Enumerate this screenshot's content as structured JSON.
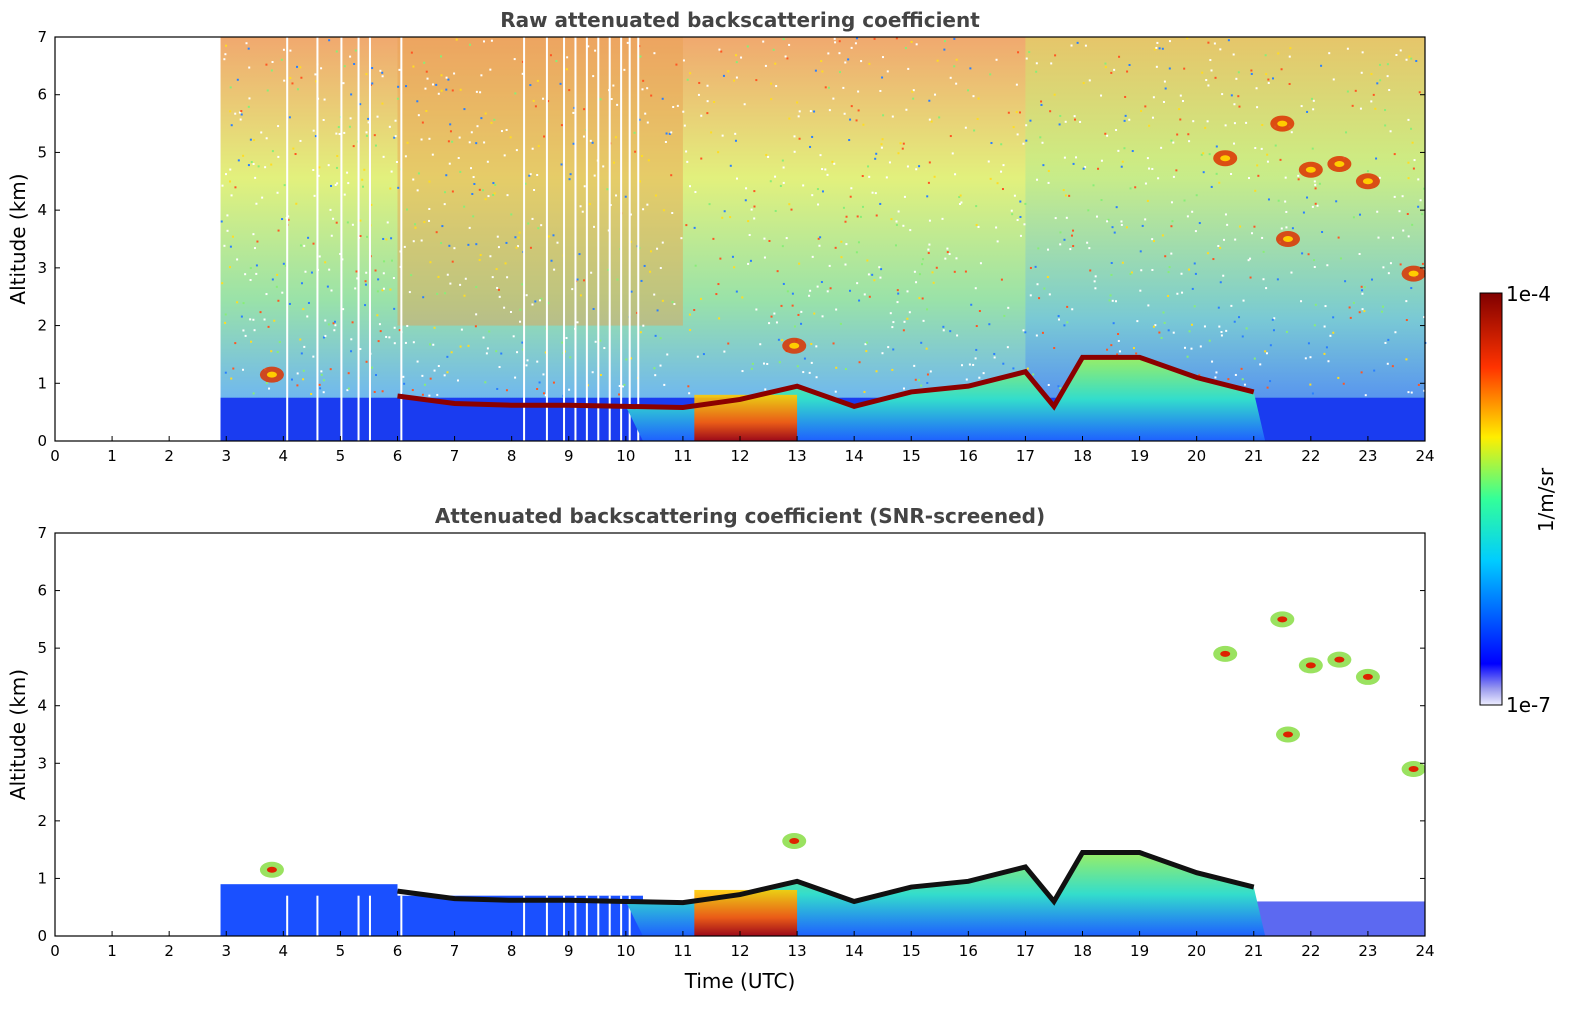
{
  "chart_data": [
    {
      "type": "heatmap",
      "title": "Raw attenuated backscattering coefficient",
      "xlabel": "",
      "ylabel": "Altitude (km)",
      "xlim": [
        0,
        24
      ],
      "ylim": [
        0,
        7
      ],
      "xticks": [
        "0",
        "1",
        "2",
        "3",
        "4",
        "5",
        "6",
        "7",
        "8",
        "9",
        "10",
        "11",
        "12",
        "13",
        "14",
        "15",
        "16",
        "17",
        "18",
        "19",
        "20",
        "21",
        "22",
        "23",
        "24"
      ],
      "yticks": [
        "0",
        "1",
        "2",
        "3",
        "4",
        "5",
        "6",
        "7"
      ],
      "data_start_hour": 2.9,
      "cloud_base_layer": [
        {
          "x": 6.0,
          "y": 0.78
        },
        {
          "x": 7.0,
          "y": 0.65
        },
        {
          "x": 8.0,
          "y": 0.62
        },
        {
          "x": 9.0,
          "y": 0.62
        },
        {
          "x": 10.0,
          "y": 0.6
        },
        {
          "x": 11.0,
          "y": 0.58
        },
        {
          "x": 12.0,
          "y": 0.72
        },
        {
          "x": 13.0,
          "y": 0.95
        },
        {
          "x": 14.0,
          "y": 0.6
        },
        {
          "x": 15.0,
          "y": 0.85
        },
        {
          "x": 16.0,
          "y": 0.95
        },
        {
          "x": 17.0,
          "y": 1.2
        },
        {
          "x": 17.5,
          "y": 0.6
        },
        {
          "x": 18.0,
          "y": 1.45
        },
        {
          "x": 19.0,
          "y": 1.45
        },
        {
          "x": 20.0,
          "y": 1.1
        },
        {
          "x": 21.0,
          "y": 0.85
        }
      ],
      "features": [
        {
          "x": 3.8,
          "y": 1.15
        },
        {
          "x": 12.95,
          "y": 1.65
        },
        {
          "x": 20.5,
          "y": 4.9
        },
        {
          "x": 21.5,
          "y": 5.5
        },
        {
          "x": 22.0,
          "y": 4.7
        },
        {
          "x": 22.5,
          "y": 4.8
        },
        {
          "x": 23.0,
          "y": 4.5
        },
        {
          "x": 21.6,
          "y": 3.5
        },
        {
          "x": 23.8,
          "y": 2.9
        }
      ]
    },
    {
      "type": "heatmap",
      "title": "Attenuated backscattering coefficient (SNR-screened)",
      "xlabel": "Time (UTC)",
      "ylabel": "Altitude (km)",
      "xlim": [
        0,
        24
      ],
      "ylim": [
        0,
        7
      ],
      "xticks": [
        "0",
        "1",
        "2",
        "3",
        "4",
        "5",
        "6",
        "7",
        "8",
        "9",
        "10",
        "11",
        "12",
        "13",
        "14",
        "15",
        "16",
        "17",
        "18",
        "19",
        "20",
        "21",
        "22",
        "23",
        "24"
      ],
      "yticks": [
        "0",
        "1",
        "2",
        "3",
        "4",
        "5",
        "6",
        "7"
      ]
    }
  ],
  "colorbar": {
    "label": "1/m/sr",
    "max_label": "1e-4",
    "min_label": "1e-7",
    "colormap": "jet",
    "scale": "log"
  },
  "colors": {
    "low": "#0000c8",
    "mid": "#00ffff",
    "high": "#800000",
    "axis": "#000000",
    "title": "#444444"
  }
}
